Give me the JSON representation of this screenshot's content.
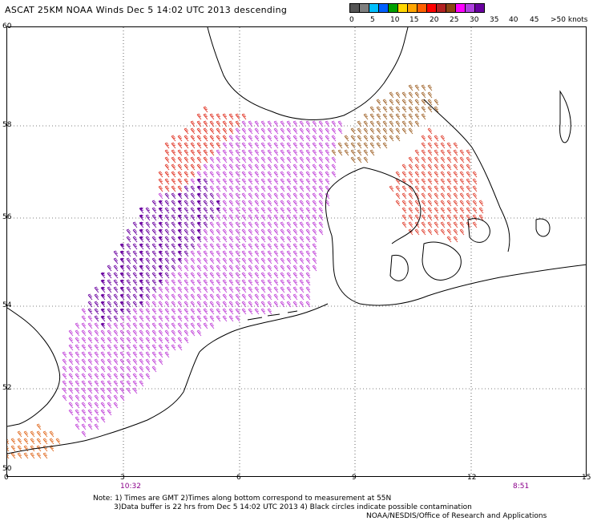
{
  "title": "ASCAT 25KM NOAA Winds  Dec  5 14:02 UTC 2013 descending",
  "colorbar": {
    "colors": [
      "#555555",
      "#7f7f7f",
      "#00bfff",
      "#0060ff",
      "#00a000",
      "#ffd700",
      "#ffa500",
      "#ff6000",
      "#ff0000",
      "#b22222",
      "#8b4513",
      "#ff00ff",
      "#b040e0",
      "#6a00a0"
    ],
    "labels": [
      "0",
      "5",
      "10",
      "15",
      "20",
      "25",
      "30",
      "35",
      "40",
      "45",
      ">50 knots"
    ]
  },
  "axes": {
    "lat_ticks": [
      "60",
      "58",
      "56",
      "54",
      "52",
      "50"
    ],
    "lon_ticks": [
      "0",
      "3",
      "6",
      "9",
      "12",
      "15"
    ]
  },
  "times": {
    "left": "10:32",
    "right": "8:51"
  },
  "notes": {
    "line1": "Note: 1) Times are GMT 2)Times along bottom correspond to measurement at 55N",
    "line2": "3)Data buffer is 22 hrs from Dec  5 14:02 UTC 2013 4) Black circles indicate possible contamination",
    "line3": "NOAA/NESDIS/Office of Research and Applications"
  },
  "wind_regions": [
    {
      "name": "north-sea-swath",
      "speed_class": "45-50 knots",
      "color": "#c040d8"
    },
    {
      "name": "core-high-winds",
      "speed_class": ">50 knots",
      "color": "#6a00a0"
    },
    {
      "name": "northern-edge",
      "speed_class": "30-40 knots",
      "color": "#e03020"
    },
    {
      "name": "skagerrak",
      "speed_class": "35-40 knots",
      "color": "#a0642a"
    },
    {
      "name": "baltic",
      "speed_class": "30-40 knots",
      "color": "#e04030"
    },
    {
      "name": "channel",
      "speed_class": "30-40 knots",
      "color": "#e06a20"
    }
  ]
}
